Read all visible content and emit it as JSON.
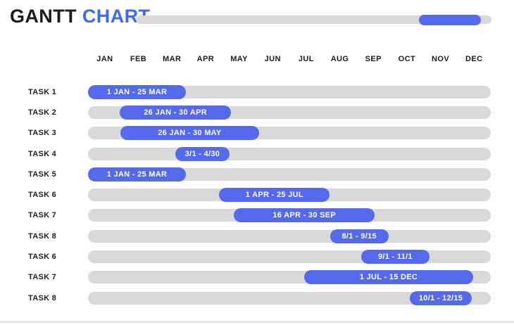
{
  "title": {
    "part1": "GANTT",
    "part2": "CHART"
  },
  "colors": {
    "accent_blue": "#5569ed",
    "title_blue": "#3d6bf7",
    "track_gray": "#d9d9d9",
    "text_dark": "#1c1c1c",
    "bar_text": "#ffffff",
    "divider": "#e6e6e6"
  },
  "top_progress": {
    "offset_pct": 79.6,
    "value_pct": 17.4
  },
  "chart_data": {
    "type": "gantt",
    "title": "GANTT CHART",
    "months": [
      "JAN",
      "FEB",
      "MAR",
      "APR",
      "MAY",
      "JUN",
      "JUL",
      "AUG",
      "SEP",
      "OCT",
      "NOV",
      "DEC"
    ],
    "axis_range": [
      "JAN",
      "DEC"
    ],
    "legend": "none",
    "grid": "off",
    "tasks": [
      {
        "label": "TASK 1",
        "bar_label": "1 JAN - 25 MAR",
        "start_pct": 0.0,
        "end_pct": 24.3
      },
      {
        "label": "TASK 2",
        "bar_label": "26 JAN - 30 APR",
        "start_pct": 7.9,
        "end_pct": 35.5
      },
      {
        "label": "TASK 3",
        "bar_label": "26 JAN - 30 MAY",
        "start_pct": 8.0,
        "end_pct": 42.5
      },
      {
        "label": "TASK 4",
        "bar_label": "3/1 - 4/30",
        "start_pct": 21.7,
        "end_pct": 35.1
      },
      {
        "label": "TASK 5",
        "bar_label": "1 JAN - 25 MAR",
        "start_pct": 0.0,
        "end_pct": 24.3
      },
      {
        "label": "TASK 6",
        "bar_label": "1 APR - 25 JUL",
        "start_pct": 32.6,
        "end_pct": 60.0
      },
      {
        "label": "TASK 7",
        "bar_label": "16 APR - 30 SEP",
        "start_pct": 36.2,
        "end_pct": 71.2
      },
      {
        "label": "TASK 8",
        "bar_label": "8/1 - 9/15",
        "start_pct": 60.1,
        "end_pct": 74.6
      },
      {
        "label": "TASK 6",
        "bar_label": "9/1 - 11/1",
        "start_pct": 67.8,
        "end_pct": 84.8
      },
      {
        "label": "TASK 7",
        "bar_label": "1 JUL - 15 DEC",
        "start_pct": 53.7,
        "end_pct": 95.6
      },
      {
        "label": "TASK 8",
        "bar_label": "10/1 - 12/15",
        "start_pct": 79.9,
        "end_pct": 95.3
      }
    ]
  }
}
